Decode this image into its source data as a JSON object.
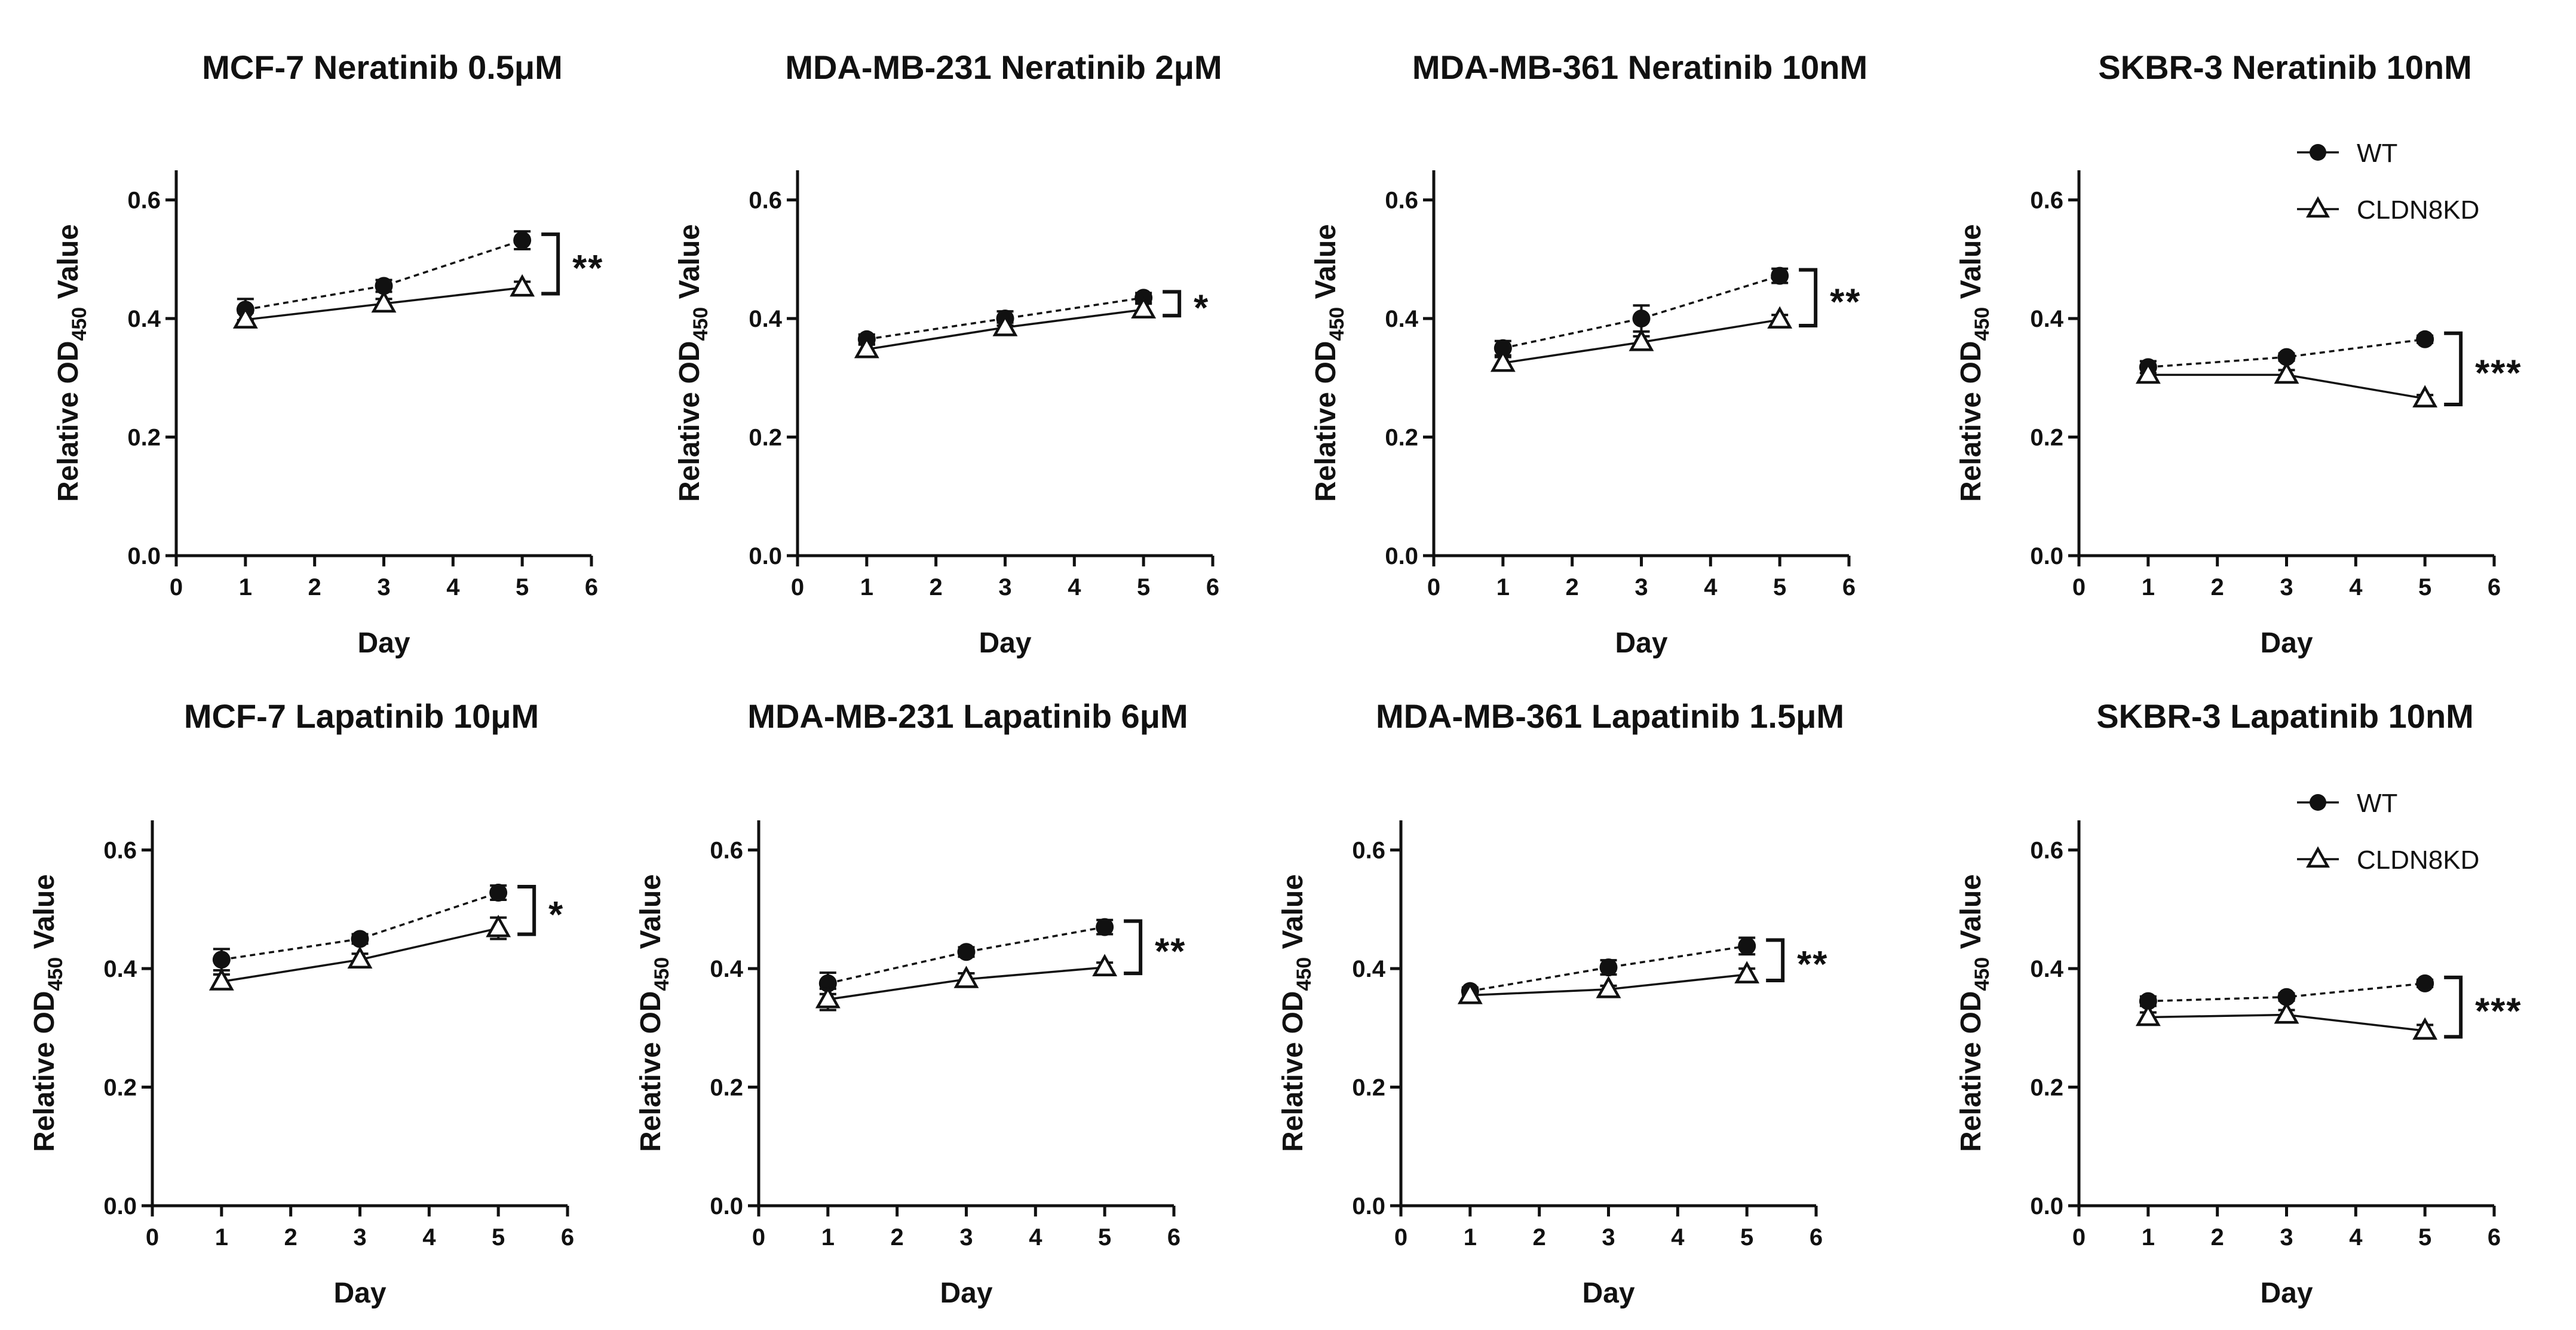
{
  "chart_data": [
    {
      "type": "line",
      "title": "MCF-7 Neratinib 0.5μM",
      "xlabel": "Day",
      "ylabel_main": "Relative OD",
      "ylabel_sub": "450",
      "ylabel_suffix": " Value",
      "xlim": [
        0,
        6
      ],
      "ylim": [
        0,
        0.65
      ],
      "xticks": [
        "0",
        "1",
        "2",
        "3",
        "4",
        "5",
        "6"
      ],
      "yticks": [
        "0.0",
        "0.2",
        "0.4",
        "0.6"
      ],
      "x": [
        1,
        3,
        5
      ],
      "series": [
        {
          "name": "WT",
          "marker": "circle",
          "values": [
            0.415,
            0.455,
            0.532
          ],
          "errors": [
            0.018,
            0.01,
            0.015
          ]
        },
        {
          "name": "CLDN8KD",
          "marker": "triangle",
          "values": [
            0.398,
            0.425,
            0.452
          ],
          "errors": [
            0.012,
            0.008,
            0.01
          ]
        }
      ],
      "significance": "**",
      "legend": false
    },
    {
      "type": "line",
      "title": "MDA-MB-231 Neratinib 2μM",
      "xlabel": "Day",
      "ylabel_main": "Relative OD",
      "ylabel_sub": "450",
      "ylabel_suffix": " Value",
      "xlim": [
        0,
        6
      ],
      "ylim": [
        0,
        0.65
      ],
      "xticks": [
        "0",
        "1",
        "2",
        "3",
        "4",
        "5",
        "6"
      ],
      "yticks": [
        "0.0",
        "0.2",
        "0.4",
        "0.6"
      ],
      "x": [
        1,
        3,
        5
      ],
      "series": [
        {
          "name": "WT",
          "marker": "circle",
          "values": [
            0.365,
            0.4,
            0.435
          ],
          "errors": [
            0.008,
            0.012,
            0.008
          ]
        },
        {
          "name": "CLDN8KD",
          "marker": "triangle",
          "values": [
            0.348,
            0.385,
            0.415
          ],
          "errors": [
            0.008,
            0.008,
            0.01
          ]
        }
      ],
      "significance": "*",
      "legend": false
    },
    {
      "type": "line",
      "title": "MDA-MB-361 Neratinib 10nM",
      "xlabel": "Day",
      "ylabel_main": "Relative OD",
      "ylabel_sub": "450",
      "ylabel_suffix": " Value",
      "xlim": [
        0,
        6
      ],
      "ylim": [
        0,
        0.65
      ],
      "xticks": [
        "0",
        "1",
        "2",
        "3",
        "4",
        "5",
        "6"
      ],
      "yticks": [
        "0.0",
        "0.2",
        "0.4",
        "0.6"
      ],
      "x": [
        1,
        3,
        5
      ],
      "series": [
        {
          "name": "WT",
          "marker": "circle",
          "values": [
            0.35,
            0.4,
            0.472
          ],
          "errors": [
            0.012,
            0.022,
            0.012
          ]
        },
        {
          "name": "CLDN8KD",
          "marker": "triangle",
          "values": [
            0.325,
            0.36,
            0.398
          ],
          "errors": [
            0.01,
            0.01,
            0.008
          ]
        }
      ],
      "significance": "**",
      "legend": false
    },
    {
      "type": "line",
      "title": "SKBR-3 Neratinib 10nM",
      "xlabel": "Day",
      "ylabel_main": "Relative OD",
      "ylabel_sub": "450",
      "ylabel_suffix": " Value",
      "xlim": [
        0,
        6
      ],
      "ylim": [
        0,
        0.65
      ],
      "xticks": [
        "0",
        "1",
        "2",
        "3",
        "4",
        "5",
        "6"
      ],
      "yticks": [
        "0.0",
        "0.2",
        "0.4",
        "0.6"
      ],
      "x": [
        1,
        3,
        5
      ],
      "series": [
        {
          "name": "WT",
          "marker": "circle",
          "values": [
            0.318,
            0.335,
            0.365
          ],
          "errors": [
            0.01,
            0.006,
            0.006
          ]
        },
        {
          "name": "CLDN8KD",
          "marker": "triangle",
          "values": [
            0.305,
            0.305,
            0.265
          ],
          "errors": [
            0.01,
            0.008,
            0.006
          ]
        }
      ],
      "significance": "***",
      "legend": true,
      "legend_position": "top-right"
    },
    {
      "type": "line",
      "title": "MCF-7 Lapatinib 10μM",
      "xlabel": "Day",
      "ylabel_main": "Relative OD",
      "ylabel_sub": "450",
      "ylabel_suffix": " Value",
      "xlim": [
        0,
        6
      ],
      "ylim": [
        0,
        0.65
      ],
      "xticks": [
        "0",
        "1",
        "2",
        "3",
        "4",
        "5",
        "6"
      ],
      "yticks": [
        "0.0",
        "0.2",
        "0.4",
        "0.6"
      ],
      "x": [
        1,
        3,
        5
      ],
      "series": [
        {
          "name": "WT",
          "marker": "circle",
          "values": [
            0.415,
            0.45,
            0.528
          ],
          "errors": [
            0.018,
            0.008,
            0.012
          ]
        },
        {
          "name": "CLDN8KD",
          "marker": "triangle",
          "values": [
            0.378,
            0.415,
            0.468
          ],
          "errors": [
            0.012,
            0.01,
            0.018
          ]
        }
      ],
      "significance": "*",
      "legend": false
    },
    {
      "type": "line",
      "title": "MDA-MB-231 Lapatinib 6μM",
      "xlabel": "Day",
      "ylabel_main": "Relative OD",
      "ylabel_sub": "450",
      "ylabel_suffix": " Value",
      "xlim": [
        0,
        6
      ],
      "ylim": [
        0,
        0.65
      ],
      "xticks": [
        "0",
        "1",
        "2",
        "3",
        "4",
        "5",
        "6"
      ],
      "yticks": [
        "0.0",
        "0.2",
        "0.4",
        "0.6"
      ],
      "x": [
        1,
        3,
        5
      ],
      "series": [
        {
          "name": "WT",
          "marker": "circle",
          "values": [
            0.375,
            0.428,
            0.47
          ],
          "errors": [
            0.018,
            0.008,
            0.012
          ]
        },
        {
          "name": "CLDN8KD",
          "marker": "triangle",
          "values": [
            0.348,
            0.382,
            0.402
          ],
          "errors": [
            0.018,
            0.01,
            0.008
          ]
        }
      ],
      "significance": "**",
      "legend": false
    },
    {
      "type": "line",
      "title": "MDA-MB-361 Lapatinib 1.5μM",
      "xlabel": "Day",
      "ylabel_main": "Relative OD",
      "ylabel_sub": "450",
      "ylabel_suffix": " Value",
      "xlim": [
        0,
        6
      ],
      "ylim": [
        0,
        0.65
      ],
      "xticks": [
        "0",
        "1",
        "2",
        "3",
        "4",
        "5",
        "6"
      ],
      "yticks": [
        "0.0",
        "0.2",
        "0.4",
        "0.6"
      ],
      "x": [
        1,
        3,
        5
      ],
      "series": [
        {
          "name": "WT",
          "marker": "circle",
          "values": [
            0.362,
            0.402,
            0.438
          ],
          "errors": [
            0.006,
            0.012,
            0.014
          ]
        },
        {
          "name": "CLDN8KD",
          "marker": "triangle",
          "values": [
            0.355,
            0.365,
            0.39
          ],
          "errors": [
            0.006,
            0.006,
            0.01
          ]
        }
      ],
      "significance": "**",
      "legend": false
    },
    {
      "type": "line",
      "title": "SKBR-3 Lapatinib 10nM",
      "xlabel": "Day",
      "ylabel_main": "Relative OD",
      "ylabel_sub": "450",
      "ylabel_suffix": " Value",
      "xlim": [
        0,
        6
      ],
      "ylim": [
        0,
        0.65
      ],
      "xticks": [
        "0",
        "1",
        "2",
        "3",
        "4",
        "5",
        "6"
      ],
      "yticks": [
        "0.0",
        "0.2",
        "0.4",
        "0.6"
      ],
      "x": [
        1,
        3,
        5
      ],
      "series": [
        {
          "name": "WT",
          "marker": "circle",
          "values": [
            0.345,
            0.352,
            0.375
          ],
          "errors": [
            0.008,
            0.006,
            0.006
          ]
        },
        {
          "name": "CLDN8KD",
          "marker": "triangle",
          "values": [
            0.318,
            0.322,
            0.295
          ],
          "errors": [
            0.008,
            0.008,
            0.01
          ]
        }
      ],
      "significance": "***",
      "legend": true,
      "legend_position": "top-right"
    }
  ]
}
